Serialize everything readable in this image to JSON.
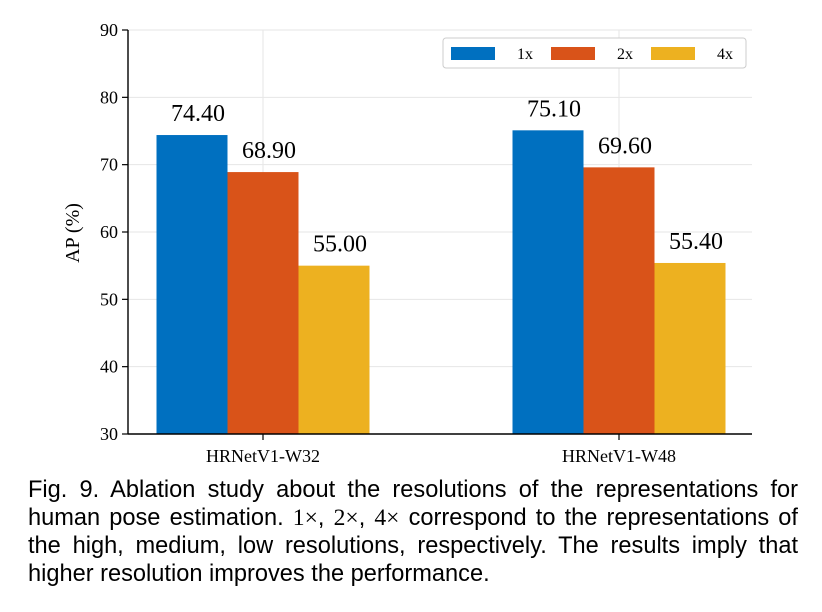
{
  "chart_data": {
    "type": "bar",
    "categories": [
      "HRNetV1-W32",
      "HRNetV1-W48"
    ],
    "series": [
      {
        "name": "1x",
        "values": [
          74.4,
          75.1
        ],
        "labels": [
          "74.40",
          "75.10"
        ],
        "color": "#0070C0"
      },
      {
        "name": "2x",
        "values": [
          68.9,
          69.6
        ],
        "labels": [
          "68.90",
          "69.60"
        ],
        "color": "#D95319"
      },
      {
        "name": "4x",
        "values": [
          55.0,
          55.4
        ],
        "labels": [
          "55.00",
          "55.40"
        ],
        "color": "#EDB120"
      }
    ],
    "ylabel": "AP (%)",
    "xlabel": "",
    "ylim": [
      30,
      90
    ],
    "yticks": [
      30,
      40,
      50,
      60,
      70,
      80,
      90
    ],
    "grid": true,
    "legend_position": "top-right"
  },
  "caption": {
    "p1": "Fig. 9. Ablation study about the resolutions of the representations for human pose estimation. ",
    "m1": "1×",
    "c1": ", ",
    "m2": "2×",
    "c2": ", ",
    "m3": "4×",
    "p2": " correspond to the representations of the high, medium, low resolutions, respectively.  The results imply that higher resolution improves the performance."
  }
}
